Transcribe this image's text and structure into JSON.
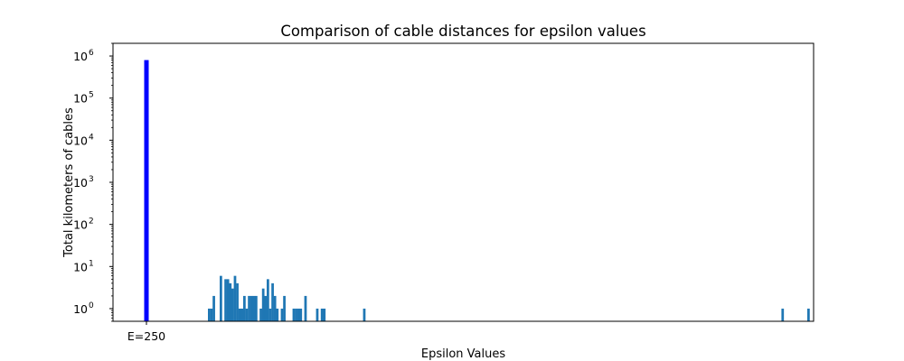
{
  "chart_data": {
    "type": "bar",
    "title": "Comparison of cable distances for epsilon values",
    "xlabel": "Epsilon Values",
    "ylabel": "Total kilometers of cables",
    "yscale": "log",
    "ylim": [
      0.5,
      2000000
    ],
    "grid": false,
    "x_tick_labels": [
      "E=250"
    ],
    "y_ticks": [
      {
        "base": "10",
        "exp": "0"
      },
      {
        "base": "10",
        "exp": "1"
      },
      {
        "base": "10",
        "exp": "2"
      },
      {
        "base": "10",
        "exp": "3"
      },
      {
        "base": "10",
        "exp": "4"
      },
      {
        "base": "10",
        "exp": "5"
      },
      {
        "base": "10",
        "exp": "6"
      }
    ],
    "highlight_bar": {
      "label": "E=250",
      "value": 800000,
      "color": "#0000ff"
    },
    "bar_color": "#1f77b4",
    "distribution_values": [
      1,
      1,
      2,
      0,
      0,
      6,
      0,
      5,
      5,
      4,
      3,
      6,
      4,
      1,
      1,
      2,
      1,
      2,
      2,
      2,
      2,
      0,
      1,
      3,
      2,
      5,
      1,
      4,
      2,
      1,
      0,
      1,
      2,
      0,
      0,
      0,
      1,
      1,
      1,
      1,
      0,
      2,
      0,
      0,
      0,
      0,
      1,
      0,
      1,
      1,
      0,
      0,
      0,
      0,
      0,
      0,
      0,
      0,
      0,
      0,
      0,
      0,
      0,
      0,
      0,
      0,
      1,
      0,
      0,
      0,
      0,
      0,
      0,
      0,
      0,
      0,
      0,
      0,
      0,
      0,
      0,
      0,
      0,
      0,
      0,
      0,
      0,
      0,
      0,
      0,
      0,
      0,
      0,
      0,
      0,
      0,
      0,
      0,
      0,
      0,
      0,
      0,
      0,
      0,
      0,
      0,
      0,
      0,
      0,
      0,
      0,
      0,
      0,
      0,
      0,
      0,
      0,
      0,
      0,
      0,
      0,
      0,
      0,
      0,
      0,
      0,
      0,
      0,
      0,
      0,
      0,
      0,
      0,
      0,
      0,
      0,
      0,
      0,
      0,
      0,
      0,
      0,
      0,
      0,
      0,
      0,
      0,
      0,
      0,
      0,
      0,
      0,
      0,
      0,
      0,
      0,
      0,
      0,
      0,
      0,
      0,
      0,
      0,
      0,
      0,
      0,
      0,
      0,
      0,
      0,
      0,
      0,
      0,
      0,
      0,
      0,
      0,
      0,
      0,
      0,
      0,
      0,
      0,
      0,
      0,
      0,
      0,
      0,
      0,
      0,
      0,
      0,
      0,
      0,
      0,
      0,
      0,
      0,
      0,
      0,
      0,
      0,
      0,
      0,
      0,
      0,
      0,
      0,
      0,
      0,
      0,
      0,
      0,
      0,
      0,
      0,
      0,
      0,
      0,
      0,
      0,
      0,
      0,
      0,
      0,
      0,
      0,
      0,
      0,
      0,
      0,
      0,
      0,
      0,
      0,
      0,
      0,
      0,
      0,
      0,
      0,
      0,
      0,
      0,
      1,
      0,
      0,
      0,
      0,
      0,
      0,
      0,
      0,
      0,
      0,
      1
    ]
  }
}
